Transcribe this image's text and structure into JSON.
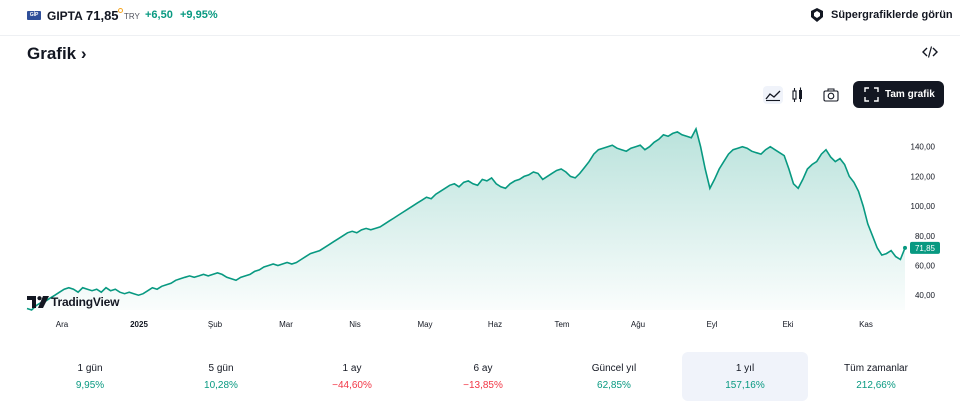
{
  "topbar": {
    "logo_text": "GİP",
    "ticker": "GIPTA",
    "price": "71,85",
    "currency": "TRY",
    "change": "+6,50",
    "change_pct": "+9,95%",
    "supercharts_label": "Süpergrafiklerde görün"
  },
  "heading": {
    "title": "Grafik",
    "arrow": "›"
  },
  "toolbar": {
    "area_icon": "area-chart-icon",
    "candle_icon": "candles-icon",
    "camera_icon": "camera-icon",
    "fullscreen_label": "Tam grafik",
    "embed_icon": "code-embed-icon"
  },
  "brand": {
    "name": "TradingView"
  },
  "colors": {
    "accent": "#089981",
    "negative": "#f23645",
    "dark": "#131722"
  },
  "chart_data": {
    "type": "area",
    "x_tick_labels": [
      "Ara",
      "2025",
      "Şub",
      "Mar",
      "Nis",
      "May",
      "Haz",
      "Tem",
      "Ağu",
      "Eyl",
      "Eki",
      "Kas"
    ],
    "y_tick_labels": [
      "40,00",
      "60,00",
      "80,00",
      "100,00",
      "120,00",
      "140,00"
    ],
    "ylim": [
      30,
      158
    ],
    "last_value_label": "71,85",
    "series": [
      {
        "values": [
          31,
          30,
          33,
          35,
          36,
          38,
          40,
          42,
          44,
          45,
          44,
          42,
          45,
          44,
          43,
          44,
          42,
          45,
          43,
          44,
          42,
          41,
          42,
          41,
          40,
          41,
          43,
          45,
          44,
          46,
          47,
          48,
          50,
          51,
          52,
          53,
          52,
          53,
          54,
          53,
          54,
          55,
          54,
          52,
          51,
          50,
          52,
          53,
          54,
          56,
          57,
          59,
          60,
          61,
          60,
          61,
          62,
          61,
          62,
          64,
          66,
          68,
          69,
          70,
          72,
          74,
          76,
          78,
          80,
          82,
          83,
          82,
          84,
          85,
          84,
          85,
          86,
          88,
          90,
          92,
          94,
          96,
          98,
          100,
          102,
          104,
          106,
          105,
          108,
          110,
          112,
          114,
          115,
          113,
          116,
          117,
          115,
          114,
          118,
          117,
          119,
          115,
          113,
          112,
          115,
          117,
          118,
          120,
          121,
          123,
          122,
          118,
          120,
          122,
          124,
          125,
          123,
          120,
          119,
          122,
          126,
          130,
          135,
          138,
          139,
          140,
          141,
          139,
          138,
          137,
          139,
          140,
          141,
          138,
          140,
          143,
          145,
          148,
          147,
          149,
          150,
          148,
          147,
          146,
          152,
          140,
          125,
          112,
          118,
          125,
          130,
          135,
          138,
          139,
          140,
          139,
          137,
          136,
          135,
          138,
          140,
          138,
          136,
          134,
          125,
          115,
          112,
          118,
          125,
          128,
          130,
          135,
          138,
          133,
          130,
          132,
          128,
          120,
          116,
          110,
          100,
          88,
          80,
          72,
          67,
          68,
          70,
          66,
          64,
          71.85
        ]
      }
    ],
    "grid": false,
    "legend": "none"
  },
  "periods": [
    {
      "label": "1 gün",
      "value": "9,95%",
      "sign": "pos"
    },
    {
      "label": "5 gün",
      "value": "10,28%",
      "sign": "pos"
    },
    {
      "label": "1 ay",
      "value": "−44,60%",
      "sign": "neg"
    },
    {
      "label": "6 ay",
      "value": "−13,85%",
      "sign": "neg"
    },
    {
      "label": "Güncel yıl",
      "value": "62,85%",
      "sign": "pos"
    },
    {
      "label": "1 yıl",
      "value": "157,16%",
      "sign": "pos",
      "selected": true
    },
    {
      "label": "Tüm zamanlar",
      "value": "212,66%",
      "sign": "pos"
    }
  ]
}
